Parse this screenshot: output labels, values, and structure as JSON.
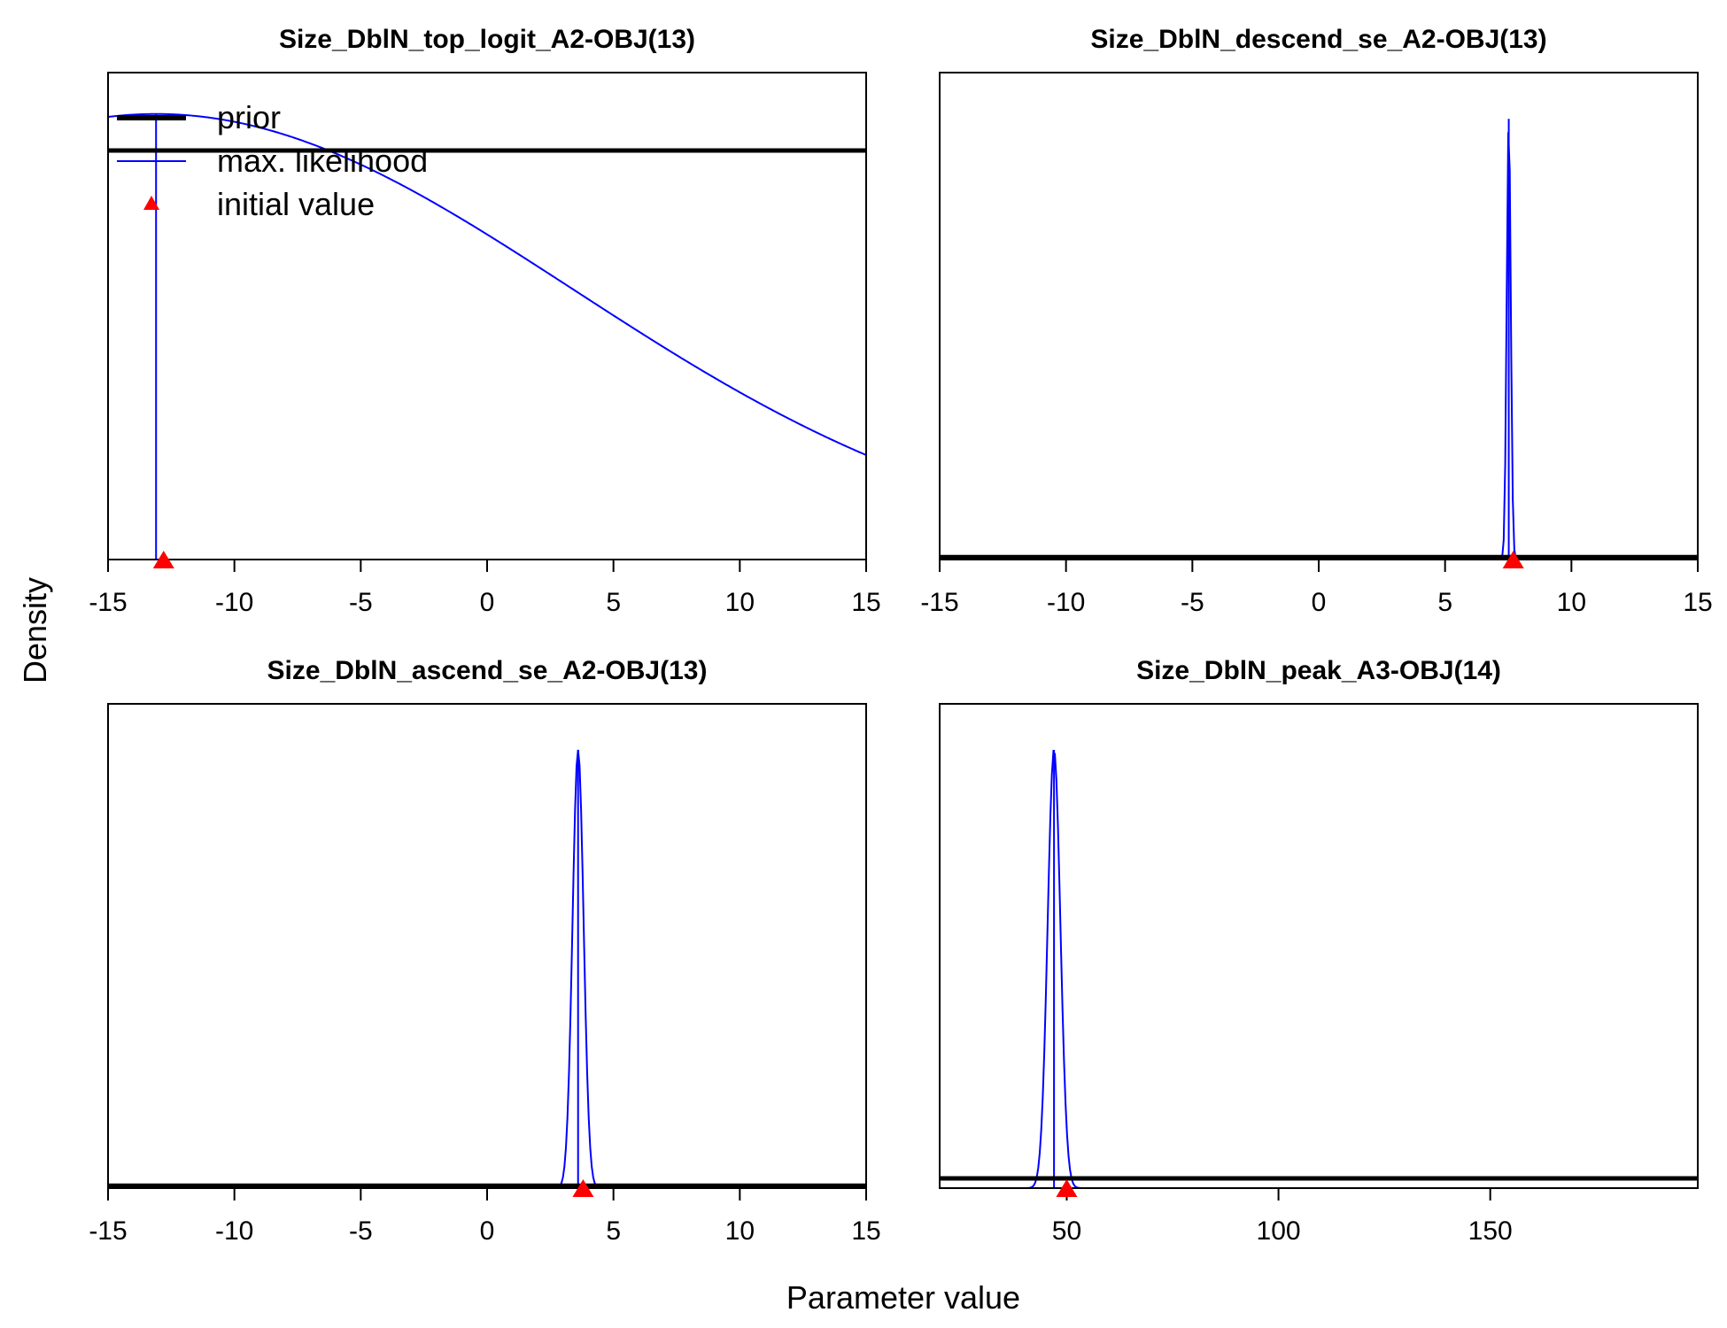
{
  "xlabel": "Parameter value",
  "ylabel": "Density",
  "legend": {
    "placement": "top-left",
    "items": [
      {
        "label": "prior",
        "style": "thick-line",
        "color": "#000000"
      },
      {
        "label": "max. likelihood",
        "style": "thin-line",
        "color": "#0000ff"
      },
      {
        "label": "initial value",
        "style": "triangle",
        "color": "#ff0000"
      }
    ]
  },
  "colors": {
    "prior": "#000000",
    "mle": "#0000ff",
    "initial": "#ff0000"
  },
  "chart_data": [
    {
      "type": "line",
      "title": "Size_DblN_top_logit_A2-OBJ(13)",
      "xlim": [
        -15,
        15
      ],
      "xticks": [
        -15,
        -10,
        -5,
        0,
        5,
        10,
        15
      ],
      "prior_level": 0.84,
      "mle": {
        "mean": -13.1,
        "sd": 16.5,
        "peak": 0.915
      },
      "mle_line_x": -13.1,
      "initial_value": -12.8
    },
    {
      "type": "line",
      "title": "Size_DblN_descend_se_A2-OBJ(13)",
      "xlim": [
        -15,
        15
      ],
      "xticks": [
        -15,
        -10,
        -5,
        0,
        5,
        10,
        15
      ],
      "prior_level": 0.005,
      "mle": {
        "mean": 7.52,
        "sd": 0.08,
        "peak": 0.905
      },
      "mle_line_x": 7.52,
      "initial_value": 7.7
    },
    {
      "type": "line",
      "title": "Size_DblN_ascend_se_A2-OBJ(13)",
      "xlim": [
        -15,
        15
      ],
      "xticks": [
        -15,
        -10,
        -5,
        0,
        5,
        10,
        15
      ],
      "prior_level": 0.005,
      "mle": {
        "mean": 3.6,
        "sd": 0.22,
        "peak": 0.905
      },
      "mle_line_x": 3.6,
      "initial_value": 3.8
    },
    {
      "type": "line",
      "title": "Size_DblN_peak_A3-OBJ(14)",
      "xlim": [
        20,
        199
      ],
      "xticks": [
        50,
        100,
        150
      ],
      "prior_level": 0.02,
      "mle": {
        "mean": 47,
        "sd": 1.5,
        "peak": 0.905
      },
      "mle_line_x": 47,
      "initial_value": 50
    }
  ]
}
